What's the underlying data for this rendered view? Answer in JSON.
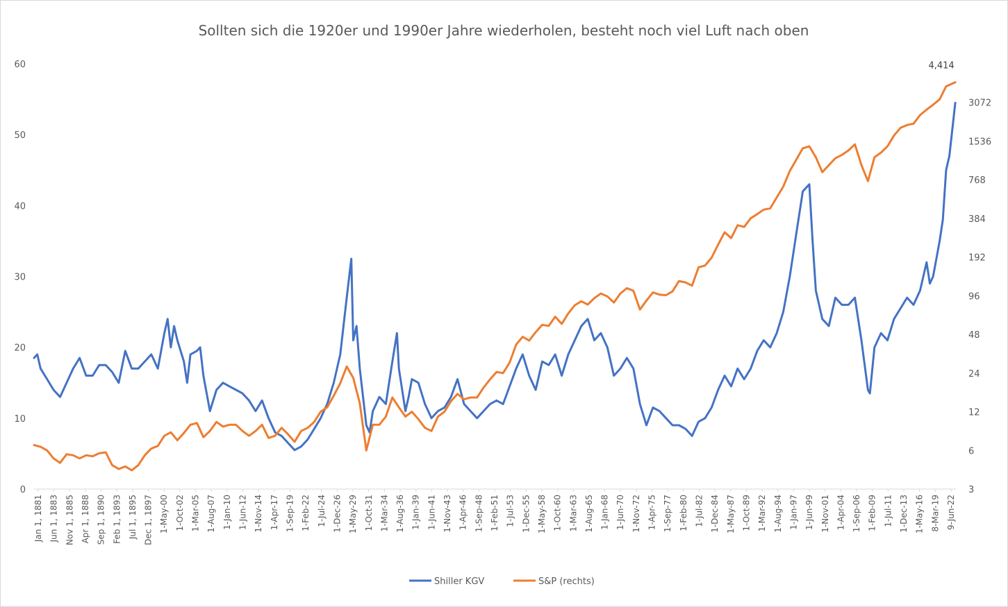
{
  "chart_data": {
    "type": "line",
    "title": "Sollten sich die 1920er und 1990er Jahre wiederholen, besteht noch viel Luft nach oben",
    "y_left": {
      "ticks": [
        "0",
        "10",
        "20",
        "30",
        "40",
        "50",
        "60"
      ],
      "ylim": [
        0,
        60
      ]
    },
    "y_right": {
      "ticks": [
        "3",
        "6",
        "12",
        "24",
        "48",
        "96",
        "192",
        "384",
        "768",
        "1536",
        "3072"
      ],
      "scale": "log2",
      "ylim": [
        3,
        6144
      ]
    },
    "x_range": [
      1881,
      2022.5
    ],
    "x_tick_labels": [
      "Jan 1, 1881",
      "Jun 1, 1883",
      "Nov 1, 1885",
      "Apr 1, 1888",
      "Sep 1, 1890",
      "Feb 1, 1893",
      "Jul 1, 1895",
      "Dec 1, 1897",
      "1-May-00",
      "1-Oct-02",
      "1-Mar-05",
      "1-Aug-07",
      "1-Jan-10",
      "1-Jun-12",
      "1-Nov-14",
      "1-Apr-17",
      "1-Sep-19",
      "1-Feb-22",
      "1-Jul-24",
      "1-Dec-26",
      "1-May-29",
      "1-Oct-31",
      "1-Mar-34",
      "1-Aug-36",
      "1-Jan-39",
      "1-Jun-41",
      "1-Nov-43",
      "1-Apr-46",
      "1-Sep-48",
      "1-Feb-51",
      "1-Jul-53",
      "1-Dec-55",
      "1-May-58",
      "1-Oct-60",
      "1-Mar-63",
      "1-Aug-65",
      "1-Jan-68",
      "1-Jun-70",
      "1-Nov-72",
      "1-Apr-75",
      "1-Sep-77",
      "1-Feb-80",
      "1-Jul-82",
      "1-Dec-84",
      "1-May-87",
      "1-Oct-89",
      "1-Mar-92",
      "1-Aug-94",
      "1-Jan-97",
      "1-Jun-99",
      "1-Nov-01",
      "1-Apr-04",
      "1-Sep-06",
      "1-Feb-09",
      "1-Jul-11",
      "1-Dec-13",
      "1-May-16",
      "8-Mar-19",
      "9-Jun-22"
    ],
    "annotation": {
      "text": "4,414",
      "series": "S&P (rechts)",
      "x": 2022.4,
      "y": 4414
    },
    "legend_position": "bottom",
    "series": [
      {
        "name": "Shiller KGV",
        "axis": "left",
        "color": "#4472C4",
        "points": [
          [
            1881,
            18.5
          ],
          [
            1881.5,
            19
          ],
          [
            1882,
            17
          ],
          [
            1883,
            15.5
          ],
          [
            1884,
            14
          ],
          [
            1885,
            13
          ],
          [
            1886,
            15
          ],
          [
            1887,
            17
          ],
          [
            1888,
            18.5
          ],
          [
            1889,
            16
          ],
          [
            1890,
            16
          ],
          [
            1891,
            17.5
          ],
          [
            1892,
            17.5
          ],
          [
            1893,
            16.5
          ],
          [
            1894,
            15
          ],
          [
            1895,
            19.5
          ],
          [
            1896,
            17
          ],
          [
            1897,
            17
          ],
          [
            1898,
            18
          ],
          [
            1899,
            19
          ],
          [
            1900,
            17
          ],
          [
            1901,
            22
          ],
          [
            1901.5,
            24
          ],
          [
            1902,
            20
          ],
          [
            1902.5,
            23
          ],
          [
            1903,
            21
          ],
          [
            1904,
            18
          ],
          [
            1904.5,
            15
          ],
          [
            1905,
            19
          ],
          [
            1906,
            19.5
          ],
          [
            1906.5,
            20
          ],
          [
            1907,
            16
          ],
          [
            1908,
            11
          ],
          [
            1909,
            14
          ],
          [
            1910,
            15
          ],
          [
            1911,
            14.5
          ],
          [
            1912,
            14
          ],
          [
            1913,
            13.5
          ],
          [
            1914,
            12.5
          ],
          [
            1915,
            11
          ],
          [
            1916,
            12.5
          ],
          [
            1917,
            10
          ],
          [
            1918,
            8
          ],
          [
            1919,
            7.5
          ],
          [
            1920,
            6.5
          ],
          [
            1921,
            5.5
          ],
          [
            1922,
            6
          ],
          [
            1923,
            7
          ],
          [
            1924,
            8.5
          ],
          [
            1925,
            10
          ],
          [
            1926,
            12
          ],
          [
            1927,
            15
          ],
          [
            1928,
            19
          ],
          [
            1929,
            27
          ],
          [
            1929.7,
            32.5
          ],
          [
            1930,
            21
          ],
          [
            1930.5,
            23
          ],
          [
            1931,
            17
          ],
          [
            1932,
            9
          ],
          [
            1932.5,
            8
          ],
          [
            1933,
            11
          ],
          [
            1934,
            13
          ],
          [
            1935,
            12
          ],
          [
            1936,
            18
          ],
          [
            1936.7,
            22
          ],
          [
            1937,
            17
          ],
          [
            1938,
            11
          ],
          [
            1938.5,
            13
          ],
          [
            1939,
            15.5
          ],
          [
            1940,
            15
          ],
          [
            1941,
            12
          ],
          [
            1942,
            10
          ],
          [
            1943,
            11
          ],
          [
            1944,
            11.5
          ],
          [
            1945,
            13
          ],
          [
            1946,
            15.5
          ],
          [
            1947,
            12
          ],
          [
            1948,
            11
          ],
          [
            1949,
            10
          ],
          [
            1950,
            11
          ],
          [
            1951,
            12
          ],
          [
            1952,
            12.5
          ],
          [
            1953,
            12
          ],
          [
            1954,
            14.5
          ],
          [
            1955,
            17
          ],
          [
            1956,
            19
          ],
          [
            1957,
            16
          ],
          [
            1958,
            14
          ],
          [
            1959,
            18
          ],
          [
            1960,
            17.5
          ],
          [
            1961,
            19
          ],
          [
            1962,
            16
          ],
          [
            1963,
            19
          ],
          [
            1964,
            21
          ],
          [
            1965,
            23
          ],
          [
            1966,
            24
          ],
          [
            1967,
            21
          ],
          [
            1968,
            22
          ],
          [
            1969,
            20
          ],
          [
            1970,
            16
          ],
          [
            1971,
            17
          ],
          [
            1972,
            18.5
          ],
          [
            1973,
            17
          ],
          [
            1974,
            12
          ],
          [
            1975,
            9
          ],
          [
            1976,
            11.5
          ],
          [
            1977,
            11
          ],
          [
            1978,
            10
          ],
          [
            1979,
            9
          ],
          [
            1980,
            9
          ],
          [
            1981,
            8.5
          ],
          [
            1982,
            7.5
          ],
          [
            1983,
            9.5
          ],
          [
            1984,
            10
          ],
          [
            1985,
            11.5
          ],
          [
            1986,
            14
          ],
          [
            1987,
            16
          ],
          [
            1988,
            14.5
          ],
          [
            1989,
            17
          ],
          [
            1990,
            15.5
          ],
          [
            1991,
            17
          ],
          [
            1992,
            19.5
          ],
          [
            1993,
            21
          ],
          [
            1994,
            20
          ],
          [
            1995,
            22
          ],
          [
            1996,
            25
          ],
          [
            1997,
            30
          ],
          [
            1998,
            36
          ],
          [
            1999,
            42
          ],
          [
            2000,
            43
          ],
          [
            2000.5,
            35
          ],
          [
            2001,
            28
          ],
          [
            2002,
            24
          ],
          [
            2003,
            23
          ],
          [
            2004,
            27
          ],
          [
            2005,
            26
          ],
          [
            2006,
            26
          ],
          [
            2007,
            27
          ],
          [
            2008,
            21
          ],
          [
            2009,
            14
          ],
          [
            2009.3,
            13.5
          ],
          [
            2010,
            20
          ],
          [
            2011,
            22
          ],
          [
            2012,
            21
          ],
          [
            2013,
            24
          ],
          [
            2014,
            25.5
          ],
          [
            2015,
            27
          ],
          [
            2016,
            26
          ],
          [
            2017,
            28
          ],
          [
            2018,
            32
          ],
          [
            2018.5,
            29
          ],
          [
            2019,
            30
          ],
          [
            2020,
            35
          ],
          [
            2020.5,
            38
          ],
          [
            2021,
            45
          ],
          [
            2021.5,
            47
          ],
          [
            2022.4,
            54.5
          ]
        ]
      },
      {
        "name": "S&P (rechts)",
        "axis": "right",
        "color": "#ED7D31",
        "points": [
          [
            1881,
            6.6
          ],
          [
            1882,
            6.4
          ],
          [
            1883,
            6
          ],
          [
            1884,
            5.2
          ],
          [
            1885,
            4.8
          ],
          [
            1886,
            5.6
          ],
          [
            1887,
            5.5
          ],
          [
            1888,
            5.2
          ],
          [
            1889,
            5.5
          ],
          [
            1890,
            5.4
          ],
          [
            1891,
            5.7
          ],
          [
            1892,
            5.8
          ],
          [
            1893,
            4.6
          ],
          [
            1894,
            4.3
          ],
          [
            1895,
            4.5
          ],
          [
            1896,
            4.2
          ],
          [
            1897,
            4.6
          ],
          [
            1898,
            5.5
          ],
          [
            1899,
            6.2
          ],
          [
            1900,
            6.5
          ],
          [
            1901,
            7.8
          ],
          [
            1902,
            8.3
          ],
          [
            1903,
            7.2
          ],
          [
            1904,
            8.2
          ],
          [
            1905,
            9.5
          ],
          [
            1906,
            9.8
          ],
          [
            1907,
            7.6
          ],
          [
            1908,
            8.5
          ],
          [
            1909,
            10
          ],
          [
            1910,
            9.2
          ],
          [
            1911,
            9.5
          ],
          [
            1912,
            9.5
          ],
          [
            1913,
            8.5
          ],
          [
            1914,
            7.8
          ],
          [
            1915,
            8.5
          ],
          [
            1916,
            9.5
          ],
          [
            1917,
            7.5
          ],
          [
            1918,
            7.8
          ],
          [
            1919,
            9
          ],
          [
            1920,
            8
          ],
          [
            1921,
            7
          ],
          [
            1922,
            8.5
          ],
          [
            1923,
            9
          ],
          [
            1924,
            10
          ],
          [
            1925,
            12
          ],
          [
            1926,
            13
          ],
          [
            1927,
            16
          ],
          [
            1928,
            20
          ],
          [
            1929,
            27
          ],
          [
            1930,
            22
          ],
          [
            1931,
            14
          ],
          [
            1932,
            6
          ],
          [
            1933,
            9.5
          ],
          [
            1934,
            9.5
          ],
          [
            1935,
            11
          ],
          [
            1936,
            15.5
          ],
          [
            1937,
            13
          ],
          [
            1938,
            11
          ],
          [
            1939,
            12
          ],
          [
            1940,
            10.5
          ],
          [
            1941,
            9
          ],
          [
            1942,
            8.5
          ],
          [
            1943,
            11
          ],
          [
            1944,
            12
          ],
          [
            1945,
            14.5
          ],
          [
            1946,
            16.5
          ],
          [
            1947,
            15
          ],
          [
            1948,
            15.5
          ],
          [
            1949,
            15.5
          ],
          [
            1950,
            18.5
          ],
          [
            1951,
            21.5
          ],
          [
            1952,
            24.5
          ],
          [
            1953,
            24
          ],
          [
            1954,
            29
          ],
          [
            1955,
            40
          ],
          [
            1956,
            46
          ],
          [
            1957,
            43
          ],
          [
            1958,
            50
          ],
          [
            1959,
            57
          ],
          [
            1960,
            56
          ],
          [
            1961,
            66
          ],
          [
            1962,
            58
          ],
          [
            1963,
            70
          ],
          [
            1964,
            81
          ],
          [
            1965,
            87
          ],
          [
            1966,
            82
          ],
          [
            1967,
            92
          ],
          [
            1968,
            100
          ],
          [
            1969,
            95
          ],
          [
            1970,
            85
          ],
          [
            1971,
            100
          ],
          [
            1972,
            110
          ],
          [
            1973,
            105
          ],
          [
            1974,
            75
          ],
          [
            1975,
            88
          ],
          [
            1976,
            102
          ],
          [
            1977,
            98
          ],
          [
            1978,
            97
          ],
          [
            1979,
            104
          ],
          [
            1980,
            125
          ],
          [
            1981,
            122
          ],
          [
            1982,
            115
          ],
          [
            1983,
            160
          ],
          [
            1984,
            165
          ],
          [
            1985,
            190
          ],
          [
            1986,
            240
          ],
          [
            1987,
            300
          ],
          [
            1988,
            270
          ],
          [
            1989,
            340
          ],
          [
            1990,
            330
          ],
          [
            1991,
            385
          ],
          [
            1992,
            415
          ],
          [
            1993,
            450
          ],
          [
            1994,
            460
          ],
          [
            1995,
            560
          ],
          [
            1996,
            680
          ],
          [
            1997,
            900
          ],
          [
            1998,
            1100
          ],
          [
            1999,
            1350
          ],
          [
            2000,
            1400
          ],
          [
            2001,
            1150
          ],
          [
            2002,
            880
          ],
          [
            2003,
            1000
          ],
          [
            2004,
            1130
          ],
          [
            2005,
            1200
          ],
          [
            2006,
            1300
          ],
          [
            2007,
            1450
          ],
          [
            2008,
            1000
          ],
          [
            2009,
            750
          ],
          [
            2010,
            1150
          ],
          [
            2011,
            1250
          ],
          [
            2012,
            1400
          ],
          [
            2013,
            1700
          ],
          [
            2014,
            1950
          ],
          [
            2015,
            2050
          ],
          [
            2016,
            2100
          ],
          [
            2017,
            2450
          ],
          [
            2018,
            2700
          ],
          [
            2019,
            2950
          ],
          [
            2020,
            3250
          ],
          [
            2021,
            4100
          ],
          [
            2022.4,
            4414
          ]
        ]
      }
    ]
  }
}
